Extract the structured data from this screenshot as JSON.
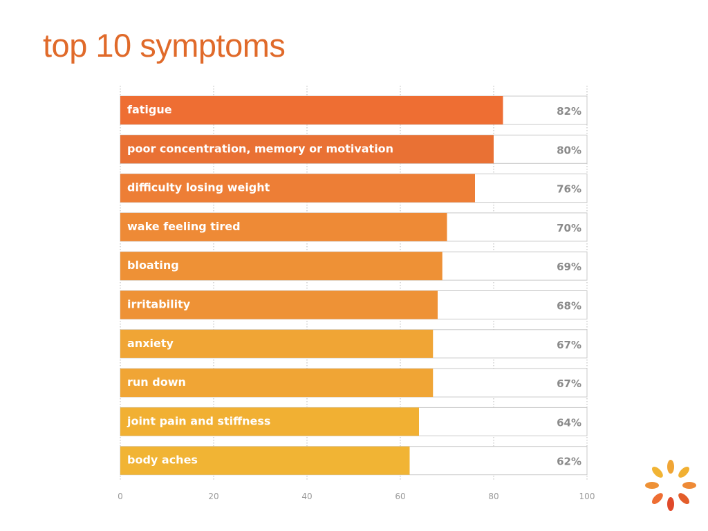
{
  "slide": {
    "title": "top 10 symptoms",
    "title_color": "#e06a2a"
  },
  "logo_icon": "orange-burst-logo-icon",
  "chart_data": {
    "type": "bar",
    "orientation": "horizontal",
    "title": "",
    "xlabel": "",
    "ylabel": "",
    "xlim": [
      0,
      100
    ],
    "x_ticks": [
      0,
      20,
      40,
      60,
      80,
      100
    ],
    "grid": "vertical dotted",
    "categories": [
      "fatigue",
      "poor concentration, memory or motivation",
      "difficulty losing weight",
      "wake feeling tired",
      "bloating",
      "irritability",
      "anxiety",
      "run down",
      "joint pain and stiffness",
      "body aches"
    ],
    "values": [
      82,
      80,
      76,
      70,
      69,
      68,
      67,
      67,
      64,
      62
    ],
    "value_labels": [
      "82%",
      "80%",
      "76%",
      "70%",
      "69%",
      "68%",
      "67%",
      "67%",
      "64%",
      "62%"
    ],
    "bar_colors": [
      "#ee6e33",
      "#e97134",
      "#ed7e36",
      "#ee8a36",
      "#ee9136",
      "#ee9236",
      "#f0a535",
      "#f0a535",
      "#f1b033",
      "#f1b434"
    ]
  }
}
